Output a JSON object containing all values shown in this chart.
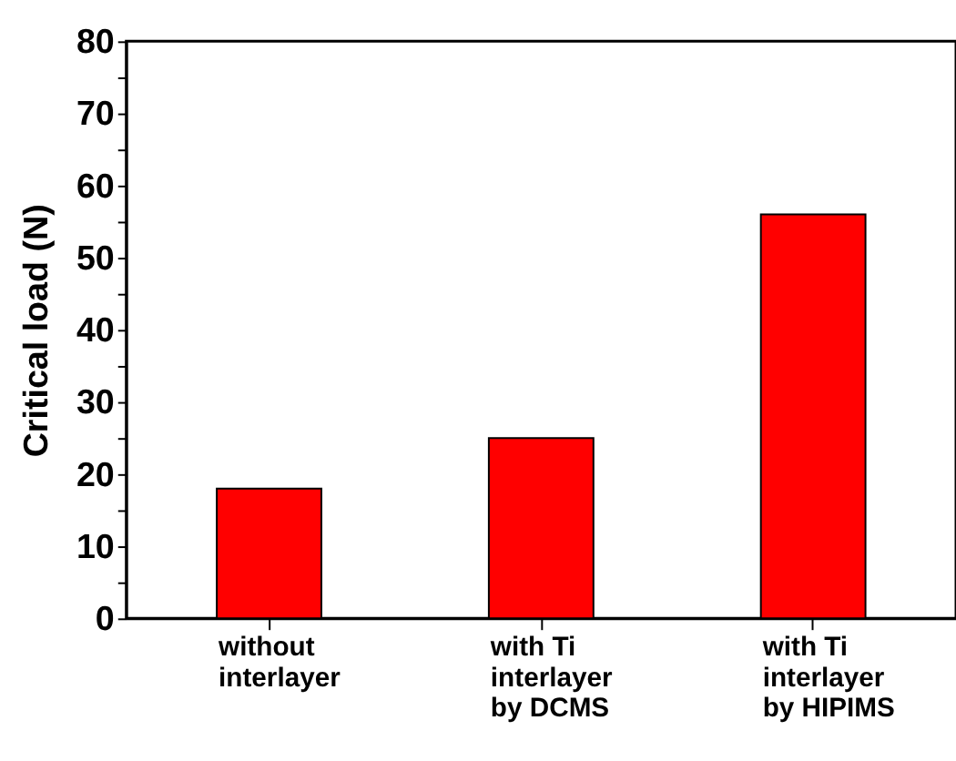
{
  "chart_data": {
    "type": "bar",
    "ylabel": "Critical load (N)",
    "categories": [
      "without interlayer",
      "with Ti interlayer by DCMS",
      "with Ti interlayer by HIPIMS"
    ],
    "values": [
      18,
      25,
      56
    ],
    "color": "#ff0000",
    "ylim": [
      0,
      80
    ],
    "yticks": [
      0,
      {
        "value": 5,
        "label": null
      },
      10,
      {
        "value": 15,
        "label": null
      },
      20,
      {
        "value": 25,
        "label": null
      },
      30,
      {
        "value": 35,
        "label": null
      },
      40,
      {
        "value": 45,
        "label": null
      },
      50,
      {
        "value": 55,
        "label": null
      },
      60,
      {
        "value": 65,
        "label": null
      },
      70,
      {
        "value": 75,
        "label": null
      },
      80
    ],
    "grid": false
  }
}
